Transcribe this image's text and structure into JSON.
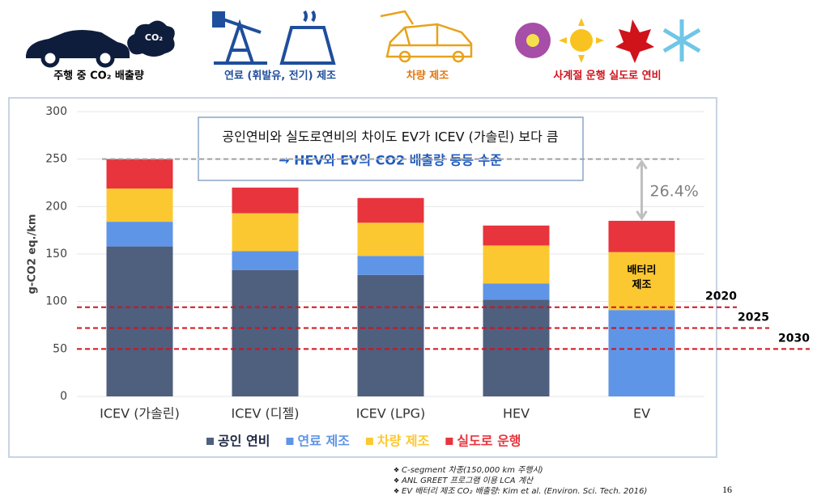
{
  "header": {
    "items": [
      {
        "label": "주행 중 CO₂ 배출량",
        "icon_text": "CO₂",
        "color": "#000000"
      },
      {
        "label": "연료 (휘발유, 전기) 제조",
        "color": "#1f4e9c"
      },
      {
        "label": "차량 제조",
        "color": "#e0760e"
      },
      {
        "label": "사계절 운행 실도로 연비",
        "color": "#d0121b"
      }
    ]
  },
  "chart_data": {
    "type": "bar",
    "stacked": true,
    "y_label": "g-CO2 eq./km",
    "categories": [
      "ICEV (가솔린)",
      "ICEV (디젤)",
      "ICEV (LPG)",
      "HEV",
      "EV"
    ],
    "series": [
      {
        "name": "공인 연비",
        "color": "#4f5f7e",
        "values": [
          158,
          133,
          128,
          102,
          0
        ]
      },
      {
        "name": "연료 제조",
        "color": "#5f95e6",
        "values": [
          26,
          20,
          20,
          17,
          91
        ]
      },
      {
        "name": "차량 제조",
        "color": "#fcc832",
        "values": [
          35,
          40,
          35,
          40,
          61
        ]
      },
      {
        "name": "실도로 운행",
        "color": "#e8343d",
        "values": [
          31,
          27,
          26,
          21,
          33
        ]
      }
    ],
    "ylim": [
      0,
      300
    ],
    "yticks": [
      0,
      50,
      100,
      150,
      200,
      250,
      300
    ],
    "callout": [
      "공인연비와 실도로연비의 차이도 EV가 ICEV (가솔린) 보다  큼",
      "→ HEV와 EV의 CO2 배출량 동등 수준"
    ],
    "segment_label": [
      "배터리",
      "제조"
    ],
    "reference_line": 250,
    "difference_label": "26.4%",
    "targets": [
      {
        "label": "2020",
        "value": 94
      },
      {
        "label": "2025",
        "value": 72
      },
      {
        "label": "2030",
        "value": 50
      }
    ],
    "target_color": "#d0121b"
  },
  "footnotes": [
    "C-segment 차종(150,000 km 주행시)",
    "ANL GREET 프로그램 이용 LCA 계산",
    "EV 배터리 제조 CO₂ 배출량: Kim et al. (Environ. Sci. Tech. 2016)"
  ],
  "page_number": "16"
}
